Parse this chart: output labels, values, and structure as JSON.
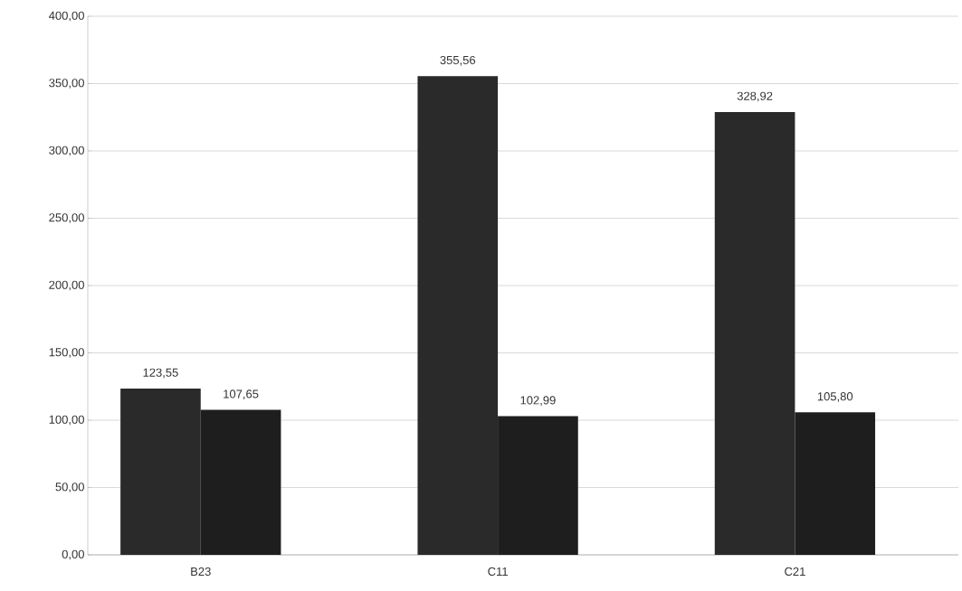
{
  "chart_data": {
    "type": "bar",
    "categories": [
      "B23",
      "C11",
      "C21"
    ],
    "series": [
      {
        "color": "#2a2a2a",
        "values": [
          123.55,
          355.56,
          328.92
        ],
        "value_labels": [
          "123,55",
          "355,56",
          "328,92"
        ]
      },
      {
        "color": "#1e1e1e",
        "values": [
          107.65,
          102.99,
          105.8
        ],
        "value_labels": [
          "107,65",
          "102,99",
          "105,80"
        ]
      }
    ],
    "ylim": [
      0,
      400
    ],
    "yticks": [
      {
        "value": 0,
        "label": "0,00"
      },
      {
        "value": 50,
        "label": "50,00"
      },
      {
        "value": 100,
        "label": "100,00"
      },
      {
        "value": 150,
        "label": "150,00"
      },
      {
        "value": 200,
        "label": "200,00"
      },
      {
        "value": 250,
        "label": "250,00"
      },
      {
        "value": 300,
        "label": "300,00"
      },
      {
        "value": 350,
        "label": "350,00"
      },
      {
        "value": 400,
        "label": "400,00"
      }
    ],
    "grid": "y"
  }
}
